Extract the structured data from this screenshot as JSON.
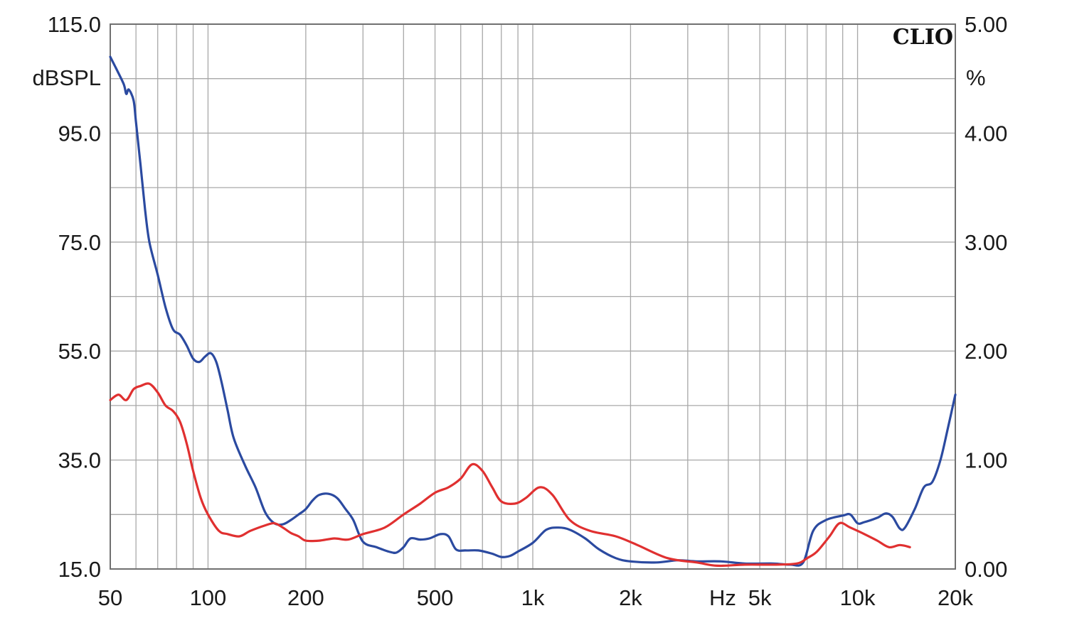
{
  "chart_data": {
    "type": "line",
    "brand": "CLIO",
    "x_unit": "Hz",
    "x_scale": "log",
    "x_range": [
      50,
      20000
    ],
    "x_ticks": [
      {
        "value": 50,
        "label": "50"
      },
      {
        "value": 100,
        "label": "100"
      },
      {
        "value": 200,
        "label": "200"
      },
      {
        "value": 500,
        "label": "500"
      },
      {
        "value": 1000,
        "label": "1k"
      },
      {
        "value": 2000,
        "label": "2k"
      },
      {
        "value": 5000,
        "label": "5k"
      },
      {
        "value": 10000,
        "label": "10k"
      },
      {
        "value": 20000,
        "label": "20k"
      }
    ],
    "y_left": {
      "unit": "dBSPL",
      "range": [
        15,
        115
      ],
      "ticks": [
        {
          "value": 115,
          "label": "115.0"
        },
        {
          "value": 95,
          "label": "95.0"
        },
        {
          "value": 75,
          "label": "75.0"
        },
        {
          "value": 55,
          "label": "55.0"
        },
        {
          "value": 35,
          "label": "35.0"
        },
        {
          "value": 15,
          "label": "15.0"
        }
      ]
    },
    "y_right": {
      "unit": "%",
      "range": [
        0,
        5
      ],
      "ticks": [
        {
          "value": 5,
          "label": "5.00"
        },
        {
          "value": 4,
          "label": "4.00"
        },
        {
          "value": 3,
          "label": "3.00"
        },
        {
          "value": 2,
          "label": "2.00"
        },
        {
          "value": 1,
          "label": "1.00"
        },
        {
          "value": 0,
          "label": "0.00"
        }
      ]
    },
    "grid": true,
    "series": [
      {
        "axis": "right",
        "color": "#2b4aa0",
        "points": [
          [
            50,
            4.7
          ],
          [
            52,
            4.6
          ],
          [
            55,
            4.45
          ],
          [
            56,
            4.36
          ],
          [
            57,
            4.4
          ],
          [
            59,
            4.3
          ],
          [
            60,
            4.1
          ],
          [
            62,
            3.7
          ],
          [
            64,
            3.3
          ],
          [
            66,
            3.0
          ],
          [
            70,
            2.7
          ],
          [
            74,
            2.4
          ],
          [
            78,
            2.2
          ],
          [
            82,
            2.15
          ],
          [
            86,
            2.05
          ],
          [
            90,
            1.93
          ],
          [
            94,
            1.9
          ],
          [
            98,
            1.95
          ],
          [
            102,
            1.98
          ],
          [
            106,
            1.9
          ],
          [
            110,
            1.72
          ],
          [
            115,
            1.45
          ],
          [
            120,
            1.2
          ],
          [
            130,
            0.95
          ],
          [
            140,
            0.75
          ],
          [
            150,
            0.52
          ],
          [
            160,
            0.42
          ],
          [
            170,
            0.41
          ],
          [
            180,
            0.45
          ],
          [
            190,
            0.5
          ],
          [
            200,
            0.55
          ],
          [
            210,
            0.63
          ],
          [
            220,
            0.68
          ],
          [
            235,
            0.69
          ],
          [
            250,
            0.65
          ],
          [
            265,
            0.55
          ],
          [
            280,
            0.45
          ],
          [
            300,
            0.25
          ],
          [
            330,
            0.2
          ],
          [
            360,
            0.16
          ],
          [
            380,
            0.15
          ],
          [
            400,
            0.2
          ],
          [
            420,
            0.28
          ],
          [
            450,
            0.27
          ],
          [
            480,
            0.28
          ],
          [
            520,
            0.32
          ],
          [
            550,
            0.3
          ],
          [
            580,
            0.18
          ],
          [
            620,
            0.17
          ],
          [
            680,
            0.17
          ],
          [
            750,
            0.14
          ],
          [
            800,
            0.11
          ],
          [
            850,
            0.12
          ],
          [
            900,
            0.16
          ],
          [
            1000,
            0.24
          ],
          [
            1100,
            0.36
          ],
          [
            1200,
            0.38
          ],
          [
            1300,
            0.36
          ],
          [
            1450,
            0.28
          ],
          [
            1600,
            0.18
          ],
          [
            1800,
            0.1
          ],
          [
            2000,
            0.07
          ],
          [
            2400,
            0.06
          ],
          [
            2800,
            0.08
          ],
          [
            3200,
            0.07
          ],
          [
            3800,
            0.07
          ],
          [
            4500,
            0.05
          ],
          [
            5500,
            0.05
          ],
          [
            6200,
            0.04
          ],
          [
            6800,
            0.06
          ],
          [
            7300,
            0.35
          ],
          [
            8000,
            0.45
          ],
          [
            9000,
            0.49
          ],
          [
            9500,
            0.5
          ],
          [
            10000,
            0.42
          ],
          [
            10500,
            0.43
          ],
          [
            11500,
            0.47
          ],
          [
            12200,
            0.51
          ],
          [
            12800,
            0.48
          ],
          [
            13500,
            0.37
          ],
          [
            14000,
            0.38
          ],
          [
            15000,
            0.55
          ],
          [
            16000,
            0.75
          ],
          [
            17000,
            0.8
          ],
          [
            18000,
            1.0
          ],
          [
            19000,
            1.3
          ],
          [
            20000,
            1.6
          ]
        ]
      },
      {
        "axis": "right",
        "color": "#e03030",
        "points": [
          [
            50,
            1.55
          ],
          [
            53,
            1.6
          ],
          [
            56,
            1.55
          ],
          [
            59,
            1.65
          ],
          [
            62,
            1.68
          ],
          [
            66,
            1.7
          ],
          [
            70,
            1.62
          ],
          [
            74,
            1.5
          ],
          [
            78,
            1.45
          ],
          [
            82,
            1.35
          ],
          [
            86,
            1.15
          ],
          [
            90,
            0.9
          ],
          [
            95,
            0.65
          ],
          [
            100,
            0.5
          ],
          [
            108,
            0.35
          ],
          [
            115,
            0.32
          ],
          [
            125,
            0.3
          ],
          [
            135,
            0.35
          ],
          [
            150,
            0.4
          ],
          [
            160,
            0.42
          ],
          [
            170,
            0.38
          ],
          [
            180,
            0.33
          ],
          [
            190,
            0.3
          ],
          [
            200,
            0.26
          ],
          [
            220,
            0.26
          ],
          [
            245,
            0.28
          ],
          [
            270,
            0.27
          ],
          [
            300,
            0.32
          ],
          [
            350,
            0.38
          ],
          [
            400,
            0.5
          ],
          [
            450,
            0.6
          ],
          [
            500,
            0.7
          ],
          [
            550,
            0.75
          ],
          [
            600,
            0.83
          ],
          [
            650,
            0.96
          ],
          [
            700,
            0.9
          ],
          [
            750,
            0.75
          ],
          [
            800,
            0.62
          ],
          [
            880,
            0.6
          ],
          [
            950,
            0.65
          ],
          [
            1050,
            0.75
          ],
          [
            1150,
            0.68
          ],
          [
            1300,
            0.45
          ],
          [
            1500,
            0.35
          ],
          [
            1800,
            0.3
          ],
          [
            2100,
            0.22
          ],
          [
            2600,
            0.1
          ],
          [
            3200,
            0.06
          ],
          [
            3700,
            0.03
          ],
          [
            4500,
            0.04
          ],
          [
            5500,
            0.04
          ],
          [
            6500,
            0.05
          ],
          [
            7000,
            0.1
          ],
          [
            7500,
            0.16
          ],
          [
            8200,
            0.3
          ],
          [
            8800,
            0.42
          ],
          [
            9500,
            0.38
          ],
          [
            10500,
            0.32
          ],
          [
            11500,
            0.26
          ],
          [
            12500,
            0.2
          ],
          [
            13500,
            0.22
          ],
          [
            14500,
            0.2
          ]
        ]
      }
    ]
  }
}
